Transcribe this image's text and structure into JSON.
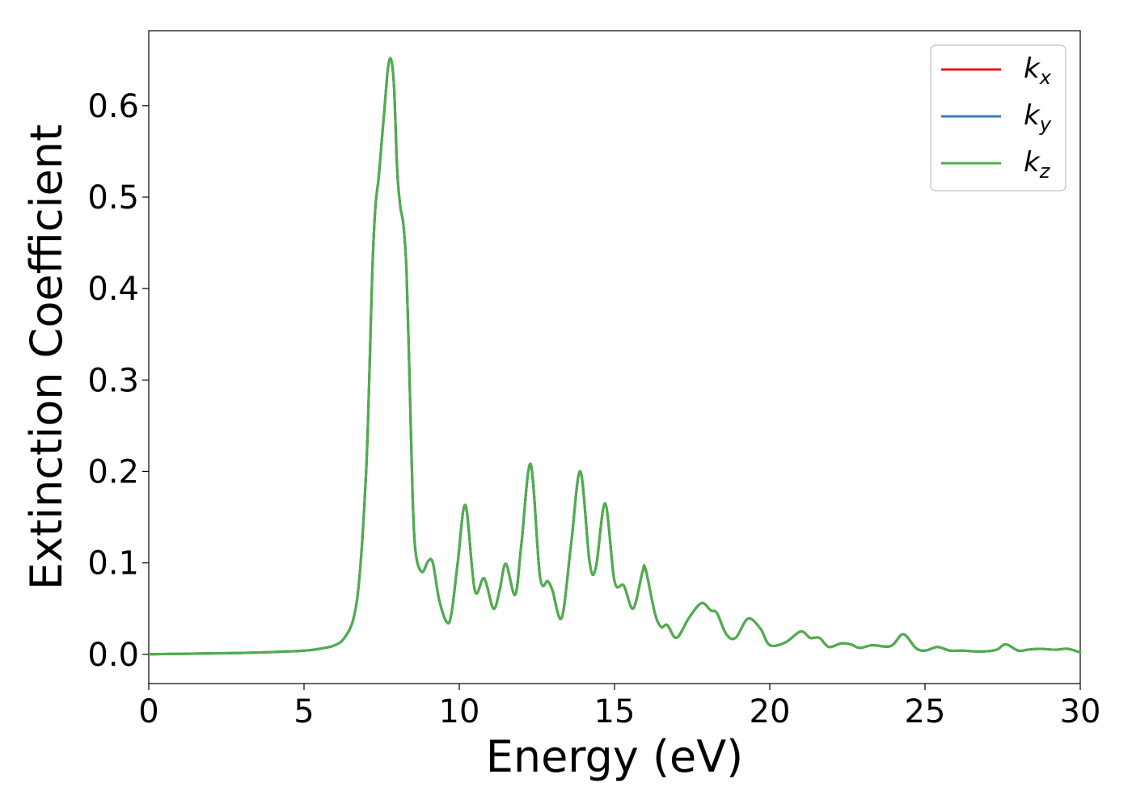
{
  "chart_data": {
    "type": "line",
    "title": "",
    "xlabel": "Energy (eV)",
    "ylabel": "Extinction Coefficient",
    "xlim": [
      0,
      30
    ],
    "ylim": [
      -0.032,
      0.682
    ],
    "xticks": [
      0,
      5,
      10,
      15,
      20,
      25,
      30
    ],
    "xtick_labels": [
      "0",
      "5",
      "10",
      "15",
      "20",
      "25",
      "30"
    ],
    "yticks": [
      0.0,
      0.1,
      0.2,
      0.3,
      0.4,
      0.5,
      0.6
    ],
    "ytick_labels": [
      "0.0",
      "0.1",
      "0.2",
      "0.3",
      "0.4",
      "0.5",
      "0.6"
    ],
    "grid": false,
    "legend_position": "top-right",
    "x": [
      0.0,
      1.0,
      2.0,
      3.0,
      4.0,
      5.0,
      5.5,
      6.0,
      6.3,
      6.6,
      6.8,
      7.0,
      7.1,
      7.2,
      7.3,
      7.4,
      7.5,
      7.6,
      7.7,
      7.8,
      7.9,
      8.0,
      8.1,
      8.2,
      8.3,
      8.4,
      8.5,
      8.6,
      8.8,
      9.0,
      9.15,
      9.35,
      9.6,
      9.75,
      9.95,
      10.2,
      10.5,
      10.8,
      11.1,
      11.3,
      11.5,
      11.8,
      12.0,
      12.3,
      12.6,
      12.85,
      13.0,
      13.3,
      13.6,
      13.9,
      14.2,
      14.4,
      14.7,
      15.0,
      15.3,
      15.6,
      15.9,
      16.0,
      16.3,
      16.5,
      16.7,
      17.0,
      17.4,
      17.8,
      18.1,
      18.3,
      18.6,
      18.9,
      19.3,
      19.7,
      20.0,
      20.5,
      21.0,
      21.3,
      21.6,
      21.9,
      22.3,
      22.6,
      22.9,
      23.3,
      23.9,
      24.3,
      24.7,
      25.0,
      25.4,
      25.8,
      26.2,
      26.8,
      27.3,
      27.6,
      28.0,
      28.3,
      28.7,
      29.2,
      29.6,
      30.0
    ],
    "series": [
      {
        "name": "k",
        "subscript": "x",
        "color": "#e41a1c",
        "values": [
          0.0,
          0.0005,
          0.001,
          0.0015,
          0.0025,
          0.004,
          0.006,
          0.01,
          0.018,
          0.04,
          0.09,
          0.2,
          0.3,
          0.42,
          0.49,
          0.52,
          0.56,
          0.6,
          0.64,
          0.651,
          0.62,
          0.53,
          0.49,
          0.47,
          0.42,
          0.3,
          0.17,
          0.11,
          0.09,
          0.102,
          0.1,
          0.06,
          0.035,
          0.045,
          0.1,
          0.163,
          0.07,
          0.083,
          0.05,
          0.07,
          0.099,
          0.065,
          0.12,
          0.208,
          0.085,
          0.08,
          0.07,
          0.04,
          0.12,
          0.2,
          0.1,
          0.095,
          0.165,
          0.08,
          0.075,
          0.05,
          0.09,
          0.093,
          0.045,
          0.03,
          0.032,
          0.018,
          0.04,
          0.056,
          0.048,
          0.045,
          0.022,
          0.018,
          0.039,
          0.028,
          0.01,
          0.013,
          0.025,
          0.018,
          0.018,
          0.008,
          0.012,
          0.011,
          0.007,
          0.01,
          0.009,
          0.022,
          0.007,
          0.004,
          0.008,
          0.004,
          0.004,
          0.003,
          0.005,
          0.011,
          0.004,
          0.005,
          0.006,
          0.005,
          0.006,
          0.002
        ]
      },
      {
        "name": "k",
        "subscript": "y",
        "color": "#377eb8",
        "values": [
          0.0,
          0.0005,
          0.001,
          0.0015,
          0.0025,
          0.004,
          0.006,
          0.01,
          0.018,
          0.04,
          0.09,
          0.2,
          0.3,
          0.42,
          0.49,
          0.52,
          0.56,
          0.6,
          0.64,
          0.651,
          0.62,
          0.53,
          0.49,
          0.47,
          0.42,
          0.3,
          0.17,
          0.11,
          0.09,
          0.102,
          0.1,
          0.06,
          0.035,
          0.045,
          0.1,
          0.163,
          0.07,
          0.083,
          0.05,
          0.07,
          0.099,
          0.065,
          0.12,
          0.208,
          0.085,
          0.08,
          0.07,
          0.04,
          0.12,
          0.2,
          0.1,
          0.095,
          0.165,
          0.08,
          0.075,
          0.05,
          0.09,
          0.093,
          0.045,
          0.03,
          0.032,
          0.018,
          0.04,
          0.056,
          0.048,
          0.045,
          0.022,
          0.018,
          0.039,
          0.028,
          0.01,
          0.013,
          0.025,
          0.018,
          0.018,
          0.008,
          0.012,
          0.011,
          0.007,
          0.01,
          0.009,
          0.022,
          0.007,
          0.004,
          0.008,
          0.004,
          0.004,
          0.003,
          0.005,
          0.011,
          0.004,
          0.005,
          0.006,
          0.005,
          0.006,
          0.002
        ]
      },
      {
        "name": "k",
        "subscript": "z",
        "color": "#4daf4a",
        "values": [
          0.0,
          0.0005,
          0.001,
          0.0015,
          0.0025,
          0.004,
          0.006,
          0.01,
          0.018,
          0.04,
          0.09,
          0.2,
          0.3,
          0.42,
          0.49,
          0.52,
          0.56,
          0.6,
          0.64,
          0.651,
          0.62,
          0.53,
          0.49,
          0.47,
          0.42,
          0.3,
          0.17,
          0.11,
          0.09,
          0.102,
          0.1,
          0.06,
          0.035,
          0.045,
          0.1,
          0.163,
          0.07,
          0.083,
          0.05,
          0.07,
          0.099,
          0.065,
          0.12,
          0.208,
          0.085,
          0.08,
          0.07,
          0.04,
          0.12,
          0.2,
          0.1,
          0.095,
          0.165,
          0.08,
          0.075,
          0.05,
          0.09,
          0.093,
          0.045,
          0.03,
          0.032,
          0.018,
          0.04,
          0.056,
          0.048,
          0.045,
          0.022,
          0.018,
          0.039,
          0.028,
          0.01,
          0.013,
          0.025,
          0.018,
          0.018,
          0.008,
          0.012,
          0.011,
          0.007,
          0.01,
          0.009,
          0.022,
          0.007,
          0.004,
          0.008,
          0.004,
          0.004,
          0.003,
          0.005,
          0.011,
          0.004,
          0.005,
          0.006,
          0.005,
          0.006,
          0.002
        ]
      }
    ]
  }
}
